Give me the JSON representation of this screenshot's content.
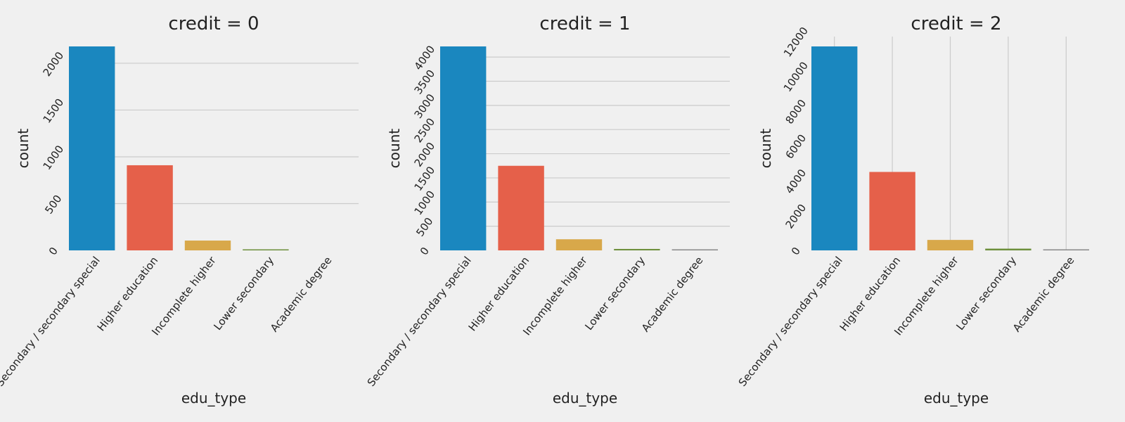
{
  "chart_data": [
    {
      "type": "bar",
      "title": "credit = 0",
      "xlabel": "edu_type",
      "ylabel": "count",
      "categories": [
        "Secondary / secondary special",
        "Higher education",
        "Incomplete higher",
        "Lower secondary",
        "Academic degree"
      ],
      "values": [
        2180,
        910,
        105,
        10,
        0
      ],
      "ylim": [
        0,
        2180
      ],
      "yticks": [
        0,
        500,
        1000,
        1500,
        2000
      ],
      "grid": "horizontal",
      "colors": [
        "#1a87bf",
        "#e5604a",
        "#d8a84a",
        "#6d8f3b",
        "#888888"
      ]
    },
    {
      "type": "bar",
      "title": "credit = 1",
      "xlabel": "edu_type",
      "ylabel": "count",
      "categories": [
        "Secondary / secondary special",
        "Higher education",
        "Incomplete higher",
        "Lower secondary",
        "Academic degree"
      ],
      "values": [
        4220,
        1750,
        230,
        30,
        2
      ],
      "ylim": [
        0,
        4220
      ],
      "yticks": [
        0,
        500,
        1000,
        1500,
        2000,
        2500,
        3000,
        3500,
        4000
      ],
      "grid": "horizontal",
      "colors": [
        "#1a87bf",
        "#e5604a",
        "#d8a84a",
        "#6d8f3b",
        "#888888"
      ]
    },
    {
      "type": "bar",
      "title": "credit = 2",
      "xlabel": "edu_type",
      "ylabel": "count",
      "categories": [
        "Secondary / secondary special",
        "Higher education",
        "Incomplete higher",
        "Lower secondary",
        "Academic degree"
      ],
      "values": [
        11700,
        4500,
        600,
        100,
        5
      ],
      "ylim": [
        0,
        11700
      ],
      "yticks": [
        0,
        2000,
        4000,
        6000,
        8000,
        10000,
        12000
      ],
      "grid": "vertical",
      "colors": [
        "#1a87bf",
        "#e5604a",
        "#d8a84a",
        "#6d8f3b",
        "#888888"
      ]
    }
  ]
}
